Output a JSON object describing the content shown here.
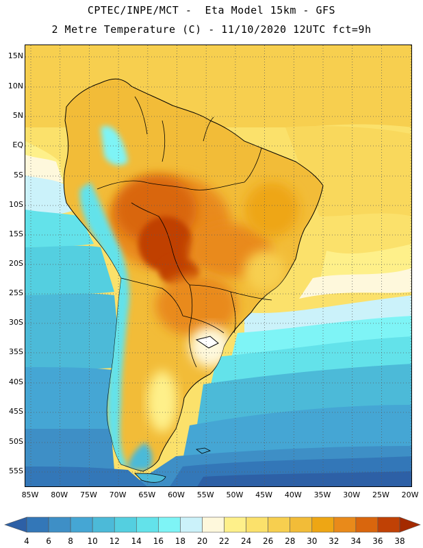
{
  "header": {
    "line1": "CPTEC/INPE/MCT -  Eta Model 15km - GFS",
    "line2": "2 Metre Temperature (C) - 11/10/2020 12UTC fct=9h"
  },
  "map": {
    "lat_labels": [
      "15N",
      "10N",
      "5N",
      "EQ",
      "5S",
      "10S",
      "15S",
      "20S",
      "25S",
      "30S",
      "35S",
      "40S",
      "45S",
      "50S",
      "55S"
    ],
    "lon_labels": [
      "85W",
      "80W",
      "75W",
      "70W",
      "65W",
      "60W",
      "55W",
      "50W",
      "45W",
      "40W",
      "35W",
      "30W",
      "25W",
      "20W"
    ]
  },
  "colorbar": {
    "labels": [
      "4",
      "6",
      "8",
      "10",
      "12",
      "14",
      "16",
      "18",
      "20",
      "22",
      "24",
      "26",
      "28",
      "30",
      "32",
      "34",
      "36",
      "38"
    ],
    "colors": [
      "#2d60a6",
      "#3377b8",
      "#3e8fc6",
      "#45a6d4",
      "#4cbad8",
      "#54cfe0",
      "#63e2ea",
      "#7ef4f6",
      "#cbf2fa",
      "#fef8dc",
      "#fef08a",
      "#fbe16b",
      "#f7cf4f",
      "#f2bc38",
      "#eea614",
      "#e98a1a",
      "#d9660d",
      "#c04105",
      "#a42a00"
    ]
  }
}
